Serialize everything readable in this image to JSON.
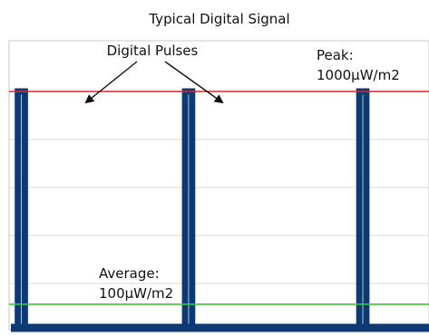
{
  "chart_data": {
    "type": "line",
    "title": "Typical Digital Signal",
    "xlabel": "",
    "ylabel": "",
    "ylim": [
      0,
      1000
    ],
    "grid": true,
    "legend": "none",
    "series": [
      {
        "values_note_free": true,
        "x": [
          0,
          0.04,
          0.04,
          0.08,
          0.08,
          1.0,
          1.0,
          1.04,
          1.04,
          2.0,
          2.0,
          2.04,
          2.04,
          2.4
        ],
        "values": [
          0,
          0,
          1000,
          1000,
          0,
          0,
          1000,
          1000,
          0,
          0,
          1000,
          1000,
          0,
          0
        ]
      }
    ],
    "reference_lines": [
      {
        "value": 1000,
        "label_line1": "Peak:",
        "label_line2": "1000μW/m2",
        "color": "#e32626"
      },
      {
        "value": 100,
        "label_line1": "Average:",
        "label_line2": "100μW/m2",
        "color": "#33cc33"
      }
    ],
    "annotations": [
      {
        "text": "Digital Pulses"
      }
    ]
  },
  "colors": {
    "pulse": "#0d3a73",
    "peak_line": "#e32626",
    "average_line": "#33cc33",
    "grid": "#d9d9d9",
    "border": "#c8c8c8",
    "arrow": "#111111"
  }
}
